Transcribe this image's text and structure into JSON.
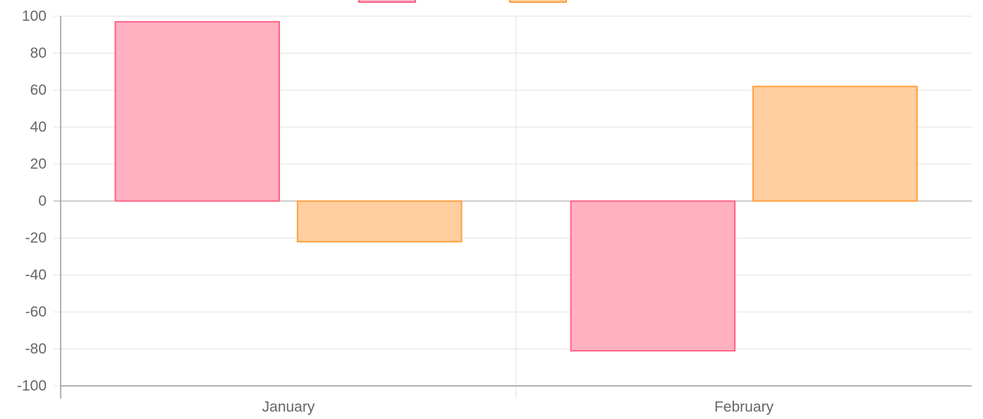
{
  "chart_data": {
    "type": "bar",
    "categories": [
      "January",
      "February"
    ],
    "series": [
      {
        "values": [
          97,
          -81
        ],
        "fill": "#ffb0c1",
        "stroke": "#ff6384"
      },
      {
        "values": [
          -22,
          62
        ],
        "fill": "#ffcf9f",
        "stroke": "#ff9f40"
      }
    ],
    "ylim": [
      -100,
      100
    ],
    "yticks": [
      100,
      80,
      60,
      40,
      20,
      0,
      -20,
      -40,
      -60,
      -80,
      -100
    ],
    "grid": true,
    "legend": "top"
  }
}
